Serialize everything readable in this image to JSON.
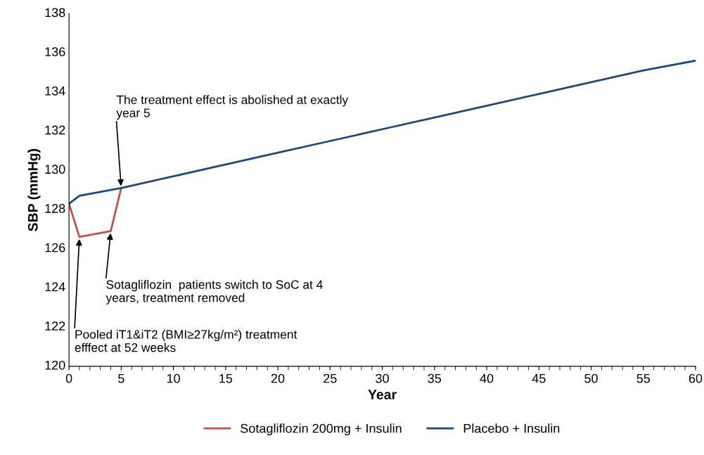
{
  "chart_data": {
    "type": "line",
    "xlabel": "Year",
    "ylabel": "SBP (mmHg)",
    "xlim": [
      0,
      60
    ],
    "xticks": [
      0,
      5,
      10,
      15,
      20,
      25,
      30,
      35,
      40,
      45,
      50,
      55,
      60
    ],
    "ylim": [
      120,
      138
    ],
    "yticks": [
      120,
      122,
      124,
      126,
      128,
      130,
      132,
      134,
      136,
      138
    ],
    "grid": false,
    "legend": "bottom",
    "marker": "none",
    "line_style": "solid",
    "series": [
      {
        "name": "Sotagliflozin 200mg + Insulin",
        "color": "#c0504d",
        "x": [
          0,
          1,
          4,
          5
        ],
        "values": [
          128.3,
          126.6,
          126.9,
          129.1
        ]
      },
      {
        "name": "Placebo + Insulin",
        "color": "#1f497d",
        "x": [
          0,
          1,
          5,
          10,
          15,
          20,
          25,
          30,
          35,
          40,
          45,
          50,
          55,
          60
        ],
        "values": [
          128.3,
          128.7,
          129.1,
          129.7,
          130.3,
          130.9,
          131.5,
          132.1,
          132.7,
          133.3,
          133.9,
          134.5,
          135.1,
          135.6
        ]
      }
    ],
    "annotations": [
      {
        "text": "The treatment effect is abolished at exactly\nyear 5",
        "x": 5,
        "y": 129.1
      },
      {
        "text": "Sotagliflozin  patients switch to SoC at 4\nyears, treatment removed",
        "x": 4,
        "y": 126.9
      },
      {
        "text": "Pooled iT1&iT2 (BMI≥27kg/m²) treatment\nefffect at 52 weeks",
        "x": 1,
        "y": 126.6
      }
    ]
  }
}
